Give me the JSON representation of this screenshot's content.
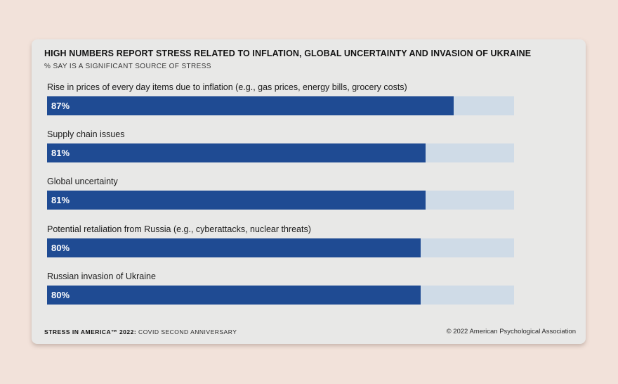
{
  "header": {
    "title": "HIGH NUMBERS REPORT STRESS RELATED TO INFLATION, GLOBAL UNCERTAINTY AND INVASION OF UKRAINE",
    "subtitle": "% SAY IS A SIGNIFICANT SOURCE OF STRESS"
  },
  "rows": [
    {
      "label": "Rise in prices of every day items due to inflation (e.g., gas prices, energy bills, grocery costs)",
      "value": 87,
      "value_label": "87%"
    },
    {
      "label": "Supply chain issues",
      "value": 81,
      "value_label": "81%"
    },
    {
      "label": "Global uncertainty",
      "value": 81,
      "value_label": "81%"
    },
    {
      "label": "Potential retaliation from Russia (e.g., cyberattacks, nuclear threats)",
      "value": 80,
      "value_label": "80%"
    },
    {
      "label": "Russian invasion of Ukraine",
      "value": 80,
      "value_label": "80%"
    }
  ],
  "footer": {
    "source_bold": "STRESS IN AMERICA™ 2022:",
    "source_rest": " COVID SECOND ANNIVERSARY",
    "copyright": "© 2022 American Psychological Association"
  },
  "colors": {
    "bar_fill": "#1f4b93",
    "bar_track": "#cfdbe7",
    "card_bg": "#e8e8e7",
    "page_bg": "#f2e2da"
  },
  "chart_data": {
    "type": "bar",
    "orientation": "horizontal",
    "title": "HIGH NUMBERS REPORT STRESS RELATED TO INFLATION, GLOBAL UNCERTAINTY AND INVASION OF UKRAINE",
    "subtitle": "% SAY IS A SIGNIFICANT SOURCE OF STRESS",
    "categories": [
      "Rise in prices of every day items due to inflation (e.g., gas prices, energy bills, grocery costs)",
      "Supply chain issues",
      "Global uncertainty",
      "Potential retaliation from Russia (e.g., cyberattacks, nuclear threats)",
      "Russian invasion of Ukraine"
    ],
    "values": [
      87,
      81,
      81,
      80,
      80
    ],
    "xlabel": "",
    "ylabel": "",
    "xlim": [
      0,
      100
    ],
    "unit": "%",
    "grid": false,
    "legend": null,
    "source": "STRESS IN AMERICA™ 2022: COVID SECOND ANNIVERSARY",
    "credit": "© 2022 American Psychological Association"
  }
}
